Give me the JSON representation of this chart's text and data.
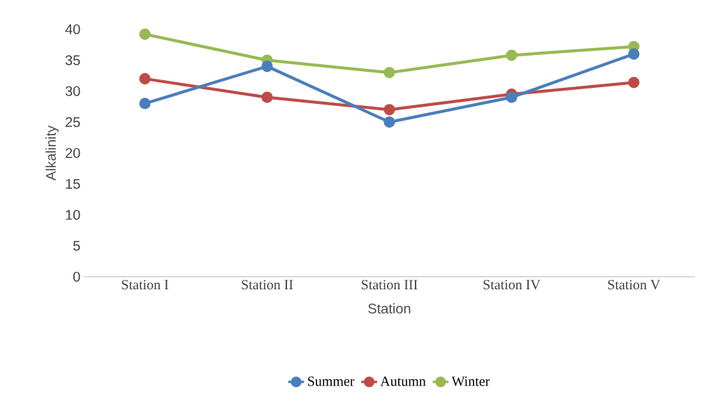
{
  "chart_data": {
    "type": "line",
    "xlabel": "Station",
    "ylabel": "Alkalinity",
    "categories": [
      "Station I",
      "Station II",
      "Station III",
      "Station IV",
      "Station V"
    ],
    "ylim": [
      0,
      40
    ],
    "yticks": [
      0,
      5,
      10,
      15,
      20,
      25,
      30,
      35,
      40
    ],
    "legend": "bottom",
    "marker": "circle",
    "line_style": "solid",
    "series": [
      {
        "name": "Summer",
        "color": "#4a7ebb",
        "values": [
          28,
          34,
          25,
          29,
          36
        ]
      },
      {
        "name": "Autumn",
        "color": "#be4b48",
        "values": [
          32,
          29,
          27,
          29.5,
          31.4
        ]
      },
      {
        "name": "Winter",
        "color": "#98b954",
        "values": [
          39.2,
          35,
          33,
          35.8,
          37.2
        ]
      }
    ]
  }
}
